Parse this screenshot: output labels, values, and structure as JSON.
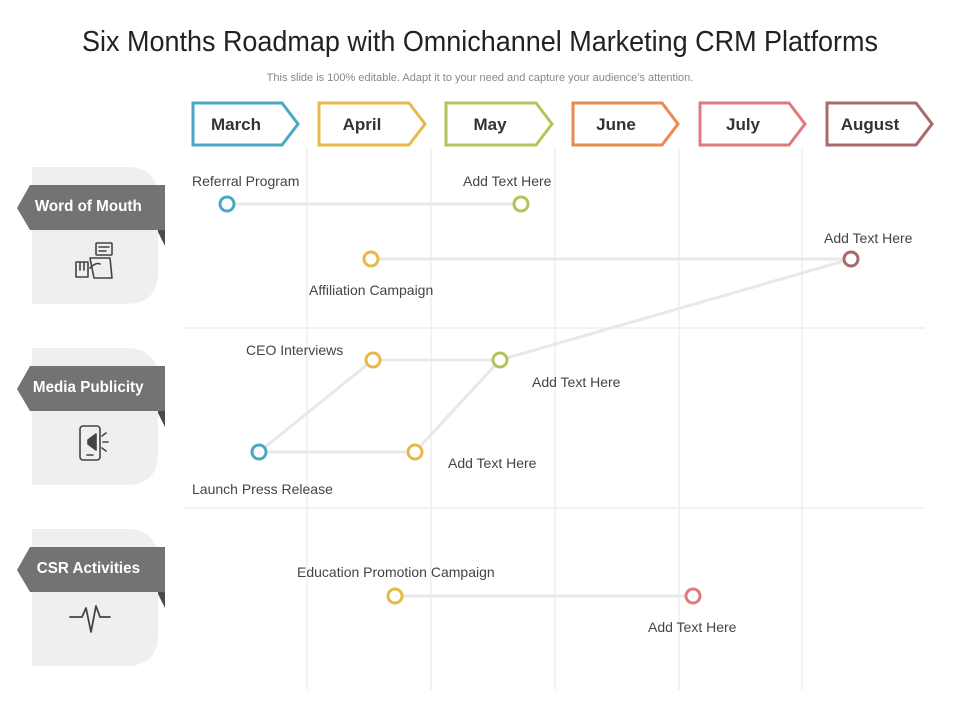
{
  "title": "Six Months Roadmap with Omnichannel Marketing CRM Platforms",
  "subtitle": "This slide is 100% editable. Adapt it to your need and capture your audience’s attention.",
  "months": [
    {
      "name": "March",
      "color": "#4aa8c4"
    },
    {
      "name": "April",
      "color": "#e8b84a"
    },
    {
      "name": "May",
      "color": "#b7c25a"
    },
    {
      "name": "June",
      "color": "#e98a52"
    },
    {
      "name": "July",
      "color": "#e07a7e"
    },
    {
      "name": "August",
      "color": "#a86a6a"
    }
  ],
  "categories": [
    {
      "label": "Word of Mouth",
      "icon": "hand-document-icon"
    },
    {
      "label": "Media Publicity",
      "icon": "phone-megaphone-icon"
    },
    {
      "label": "CSR Activities",
      "icon": "pulse-icon"
    }
  ],
  "milestones": {
    "referral_program": "Referral Program",
    "wom_add_text": "Add Text Here",
    "affiliation_campaign": "Affiliation Campaign",
    "affiliation_add_text": "Add Text Here",
    "ceo_interviews": "CEO Interviews",
    "ceo_add_text": "Add Text Here",
    "launch_press_release": "Launch Press Release",
    "press_add_text": "Add Text Here",
    "education_promotion": "Education Promotion Campaign",
    "education_add_text": "Add Text Here"
  }
}
